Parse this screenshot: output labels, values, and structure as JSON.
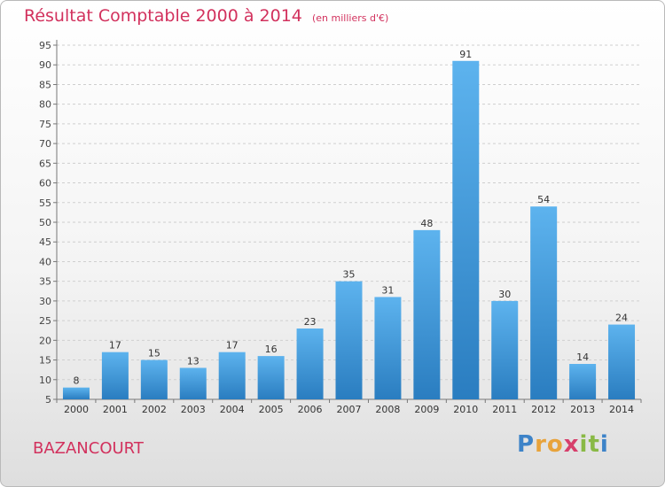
{
  "header": {
    "title": "Résultat Comptable 2000 à 2014",
    "subtitle": "(en milliers d'€)"
  },
  "commune": "BAZANCOURT",
  "logo": {
    "text": "Proxiti",
    "letters": [
      {
        "ch": "P",
        "color": "#3d83c8"
      },
      {
        "ch": "r",
        "color": "#e8a33b"
      },
      {
        "ch": "o",
        "color": "#e8a33b"
      },
      {
        "ch": "x",
        "color": "#d73f6b"
      },
      {
        "ch": "i",
        "color": "#89b945"
      },
      {
        "ch": "t",
        "color": "#89b945"
      },
      {
        "ch": "i",
        "color": "#3d83c8"
      }
    ]
  },
  "colors": {
    "bar_light": "#5db3ee",
    "bar_dark": "#2a7dc0",
    "accent": "#d2315d",
    "grid": "#cfcfcf"
  },
  "chart_data": {
    "type": "bar",
    "title": "Résultat Comptable 2000 à 2014",
    "subtitle": "(en milliers d'€)",
    "categories": [
      "2000",
      "2001",
      "2002",
      "2003",
      "2004",
      "2005",
      "2006",
      "2007",
      "2008",
      "2009",
      "2010",
      "2011",
      "2012",
      "2013",
      "2014"
    ],
    "values": [
      8,
      17,
      15,
      13,
      17,
      16,
      23,
      35,
      31,
      48,
      91,
      30,
      54,
      14,
      24
    ],
    "ylim": [
      5,
      95
    ],
    "yticks": [
      5,
      10,
      15,
      20,
      25,
      30,
      35,
      40,
      45,
      50,
      55,
      60,
      65,
      70,
      75,
      80,
      85,
      90,
      95
    ],
    "grid": true,
    "xlabel": "",
    "ylabel": ""
  }
}
